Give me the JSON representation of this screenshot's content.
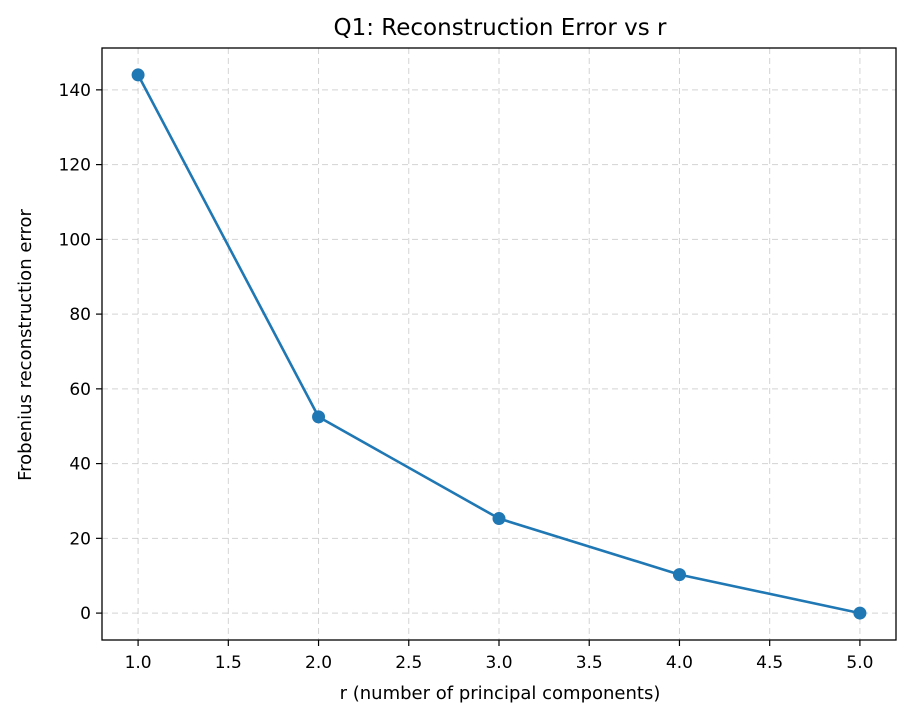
{
  "chart_data": {
    "type": "line",
    "title": "Q1: Reconstruction Error vs r",
    "xlabel": "r (number of principal components)",
    "ylabel": "Frobenius reconstruction error",
    "x": [
      1.0,
      2.0,
      3.0,
      4.0,
      5.0
    ],
    "series": [
      {
        "values": [
          144.0,
          52.5,
          25.3,
          10.3,
          0.0
        ],
        "color": "#1f77b4",
        "marker": "circle"
      }
    ],
    "xlim": [
      0.8,
      5.2
    ],
    "ylim": [
      -7.2,
      151.2
    ],
    "xticks": [
      1.0,
      1.5,
      2.0,
      2.5,
      3.0,
      3.5,
      4.0,
      4.5,
      5.0
    ],
    "xtick_labels": [
      "1.0",
      "1.5",
      "2.0",
      "2.5",
      "3.0",
      "3.5",
      "4.0",
      "4.5",
      "5.0"
    ],
    "yticks": [
      0,
      20,
      40,
      60,
      80,
      100,
      120,
      140
    ],
    "ytick_labels": [
      "0",
      "20",
      "40",
      "60",
      "80",
      "100",
      "120",
      "140"
    ],
    "grid": true,
    "grid_style": "dashed"
  }
}
